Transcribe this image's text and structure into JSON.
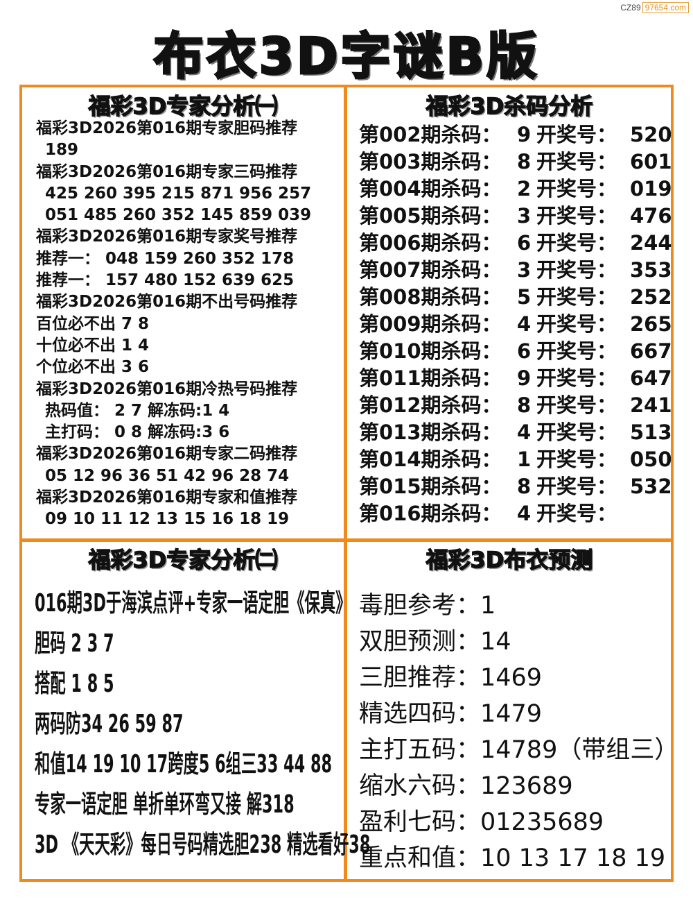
{
  "watermark": {
    "prefix": "CZ89",
    "domain": "97654.com"
  },
  "title": "布衣3D字谜B版",
  "colors": {
    "frame": "#ef8a1f"
  },
  "expert1": {
    "title": "福彩3D专家分析㈠",
    "lines": [
      "福彩3D2026第016期专家胆码推荐",
      "189",
      "福彩3D2026第016期专家三码推荐",
      "425  260  395  215  871  956  257",
      "051  485  260  352  145  859  039",
      "福彩3D2026第016期专家奖号推荐",
      "推荐一： 048  159  260  352  178",
      "推荐一： 157  480  152  639  625",
      "福彩3D2026第016期不出号码推荐",
      "百位必不出 7 8",
      "十位必不出 1 4",
      "个位必不出 3 6",
      "福彩3D2026第016期冷热号码推荐",
      "热码值： 2 7  解冻码:1 4",
      "主打码： 0 8  解冻码:3 6",
      "福彩3D2026第016期专家二码推荐",
      "05 12 96 36 51 42 96 28 74",
      "福彩3D2026第016期专家和值推荐",
      "09 10 11 12 13 15 16 18 19"
    ]
  },
  "kill": {
    "title": "福彩3D杀码分析",
    "rows": [
      {
        "period": "第002期杀码：",
        "kill": "9",
        "label": "开奖号：",
        "result": "520"
      },
      {
        "period": "第003期杀码：",
        "kill": "8",
        "label": "开奖号：",
        "result": "601"
      },
      {
        "period": "第004期杀码：",
        "kill": "2",
        "label": "开奖号：",
        "result": "019"
      },
      {
        "period": "第005期杀码：",
        "kill": "3",
        "label": "开奖号：",
        "result": "476"
      },
      {
        "period": "第006期杀码：",
        "kill": "6",
        "label": "开奖号：",
        "result": "244"
      },
      {
        "period": "第007期杀码：",
        "kill": "3",
        "label": "开奖号：",
        "result": "353"
      },
      {
        "period": "第008期杀码：",
        "kill": "5",
        "label": "开奖号：",
        "result": "252"
      },
      {
        "period": "第009期杀码：",
        "kill": "4",
        "label": "开奖号：",
        "result": "265"
      },
      {
        "period": "第010期杀码：",
        "kill": "6",
        "label": "开奖号：",
        "result": "667"
      },
      {
        "period": "第011期杀码：",
        "kill": "9",
        "label": "开奖号：",
        "result": "647"
      },
      {
        "period": "第012期杀码：",
        "kill": "8",
        "label": "开奖号：",
        "result": "241"
      },
      {
        "period": "第013期杀码：",
        "kill": "4",
        "label": "开奖号：",
        "result": "513"
      },
      {
        "period": "第014期杀码：",
        "kill": "1",
        "label": "开奖号：",
        "result": "050"
      },
      {
        "period": "第015期杀码：",
        "kill": "8",
        "label": "开奖号：",
        "result": "532"
      },
      {
        "period": "第016期杀码：",
        "kill": "4",
        "label": "开奖号：",
        "result": ""
      }
    ]
  },
  "expert2": {
    "title": "福彩3D专家分析㈡",
    "lines": [
      "016期3D于海滨点评+专家一语定胆《保真》",
      "胆码 2 3 7",
      "搭配 1 8 5",
      "两码防34 26 59 87",
      "和值14 19 10 17跨度5 6组三33 44 88",
      "专家一语定胆 单折单环弯又接 解318",
      "3D 《天天彩》每日号码精选胆238 精选看好38"
    ]
  },
  "buyi": {
    "title": "福彩3D布衣预测",
    "lines": [
      "毒胆参考：1",
      "双胆预测：14",
      "三胆推荐：1469",
      "精选四码：1479",
      "主打五码：14789（带组三）",
      "缩水六码：123689",
      "盈利七码：01235689",
      "重点和值：10 13 17 18 19"
    ]
  }
}
